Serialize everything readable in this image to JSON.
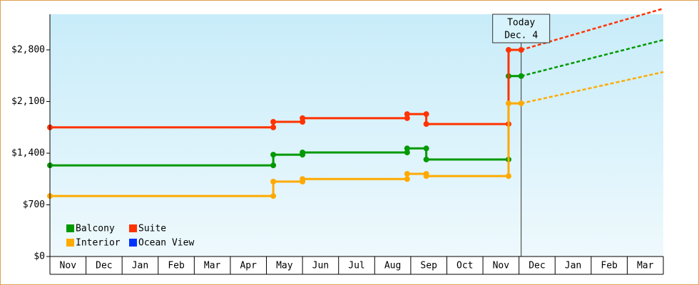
{
  "chart_data": {
    "type": "line",
    "step_markers": true,
    "xlim": [
      0,
      17
    ],
    "xticks": [
      {
        "value": 0.5,
        "label": "Nov"
      },
      {
        "value": 1.5,
        "label": "Dec"
      },
      {
        "value": 2.5,
        "label": "Jan"
      },
      {
        "value": 3.5,
        "label": "Feb"
      },
      {
        "value": 4.5,
        "label": "Mar"
      },
      {
        "value": 5.5,
        "label": "Apr"
      },
      {
        "value": 6.5,
        "label": "May"
      },
      {
        "value": 7.5,
        "label": "Jun"
      },
      {
        "value": 8.5,
        "label": "Jul"
      },
      {
        "value": 9.5,
        "label": "Aug"
      },
      {
        "value": 10.5,
        "label": "Sep"
      },
      {
        "value": 11.5,
        "label": "Oct"
      },
      {
        "value": 12.5,
        "label": "Nov"
      },
      {
        "value": 13.5,
        "label": "Dec"
      },
      {
        "value": 14.5,
        "label": "Jan"
      },
      {
        "value": 15.5,
        "label": "Feb"
      },
      {
        "value": 16.5,
        "label": "Mar"
      }
    ],
    "ylim": [
      0,
      3283
    ],
    "yticks": [
      {
        "value": 0,
        "label": "$0"
      },
      {
        "value": 700,
        "label": "$700"
      },
      {
        "value": 1400,
        "label": "$1,400"
      },
      {
        "value": 2100,
        "label": "$2,100"
      },
      {
        "value": 2800,
        "label": "$2,800"
      }
    ],
    "today": {
      "x": 13.06,
      "label": [
        "Today",
        "Dec. 4"
      ]
    },
    "legend": "lower left",
    "series": [
      {
        "name": "Balcony",
        "color": "#009900",
        "x": [
          0,
          6.19,
          6.19,
          7.0,
          7.0,
          9.9,
          9.9,
          10.43,
          10.43,
          12.71,
          12.71,
          13.06
        ],
        "values": [
          1235,
          1235,
          1380,
          1380,
          1410,
          1410,
          1465,
          1465,
          1315,
          1315,
          2445,
          2445
        ],
        "forecast": {
          "x": [
            13.06,
            17
          ],
          "values": [
            2445,
            2935
          ]
        }
      },
      {
        "name": "Suite",
        "color": "#ff3300",
        "x": [
          0,
          6.19,
          6.19,
          7.0,
          7.0,
          9.9,
          9.9,
          10.43,
          10.43,
          12.71,
          12.71,
          13.06
        ],
        "values": [
          1750,
          1750,
          1825,
          1825,
          1875,
          1875,
          1930,
          1930,
          1795,
          1795,
          2800,
          2800
        ],
        "forecast": {
          "x": [
            13.06,
            17
          ],
          "values": [
            2800,
            3360
          ]
        }
      },
      {
        "name": "Interior",
        "color": "#ffaa00",
        "x": [
          0,
          6.19,
          6.19,
          7.0,
          7.0,
          9.9,
          9.9,
          10.43,
          10.43,
          12.71,
          12.71,
          13.06
        ],
        "values": [
          820,
          820,
          1015,
          1015,
          1050,
          1050,
          1120,
          1120,
          1090,
          1090,
          2075,
          2075
        ],
        "forecast": {
          "x": [
            13.06,
            17
          ],
          "values": [
            2075,
            2500
          ]
        }
      },
      {
        "name": "Ocean View",
        "color": "#0033ff",
        "x": [],
        "values": []
      }
    ]
  }
}
